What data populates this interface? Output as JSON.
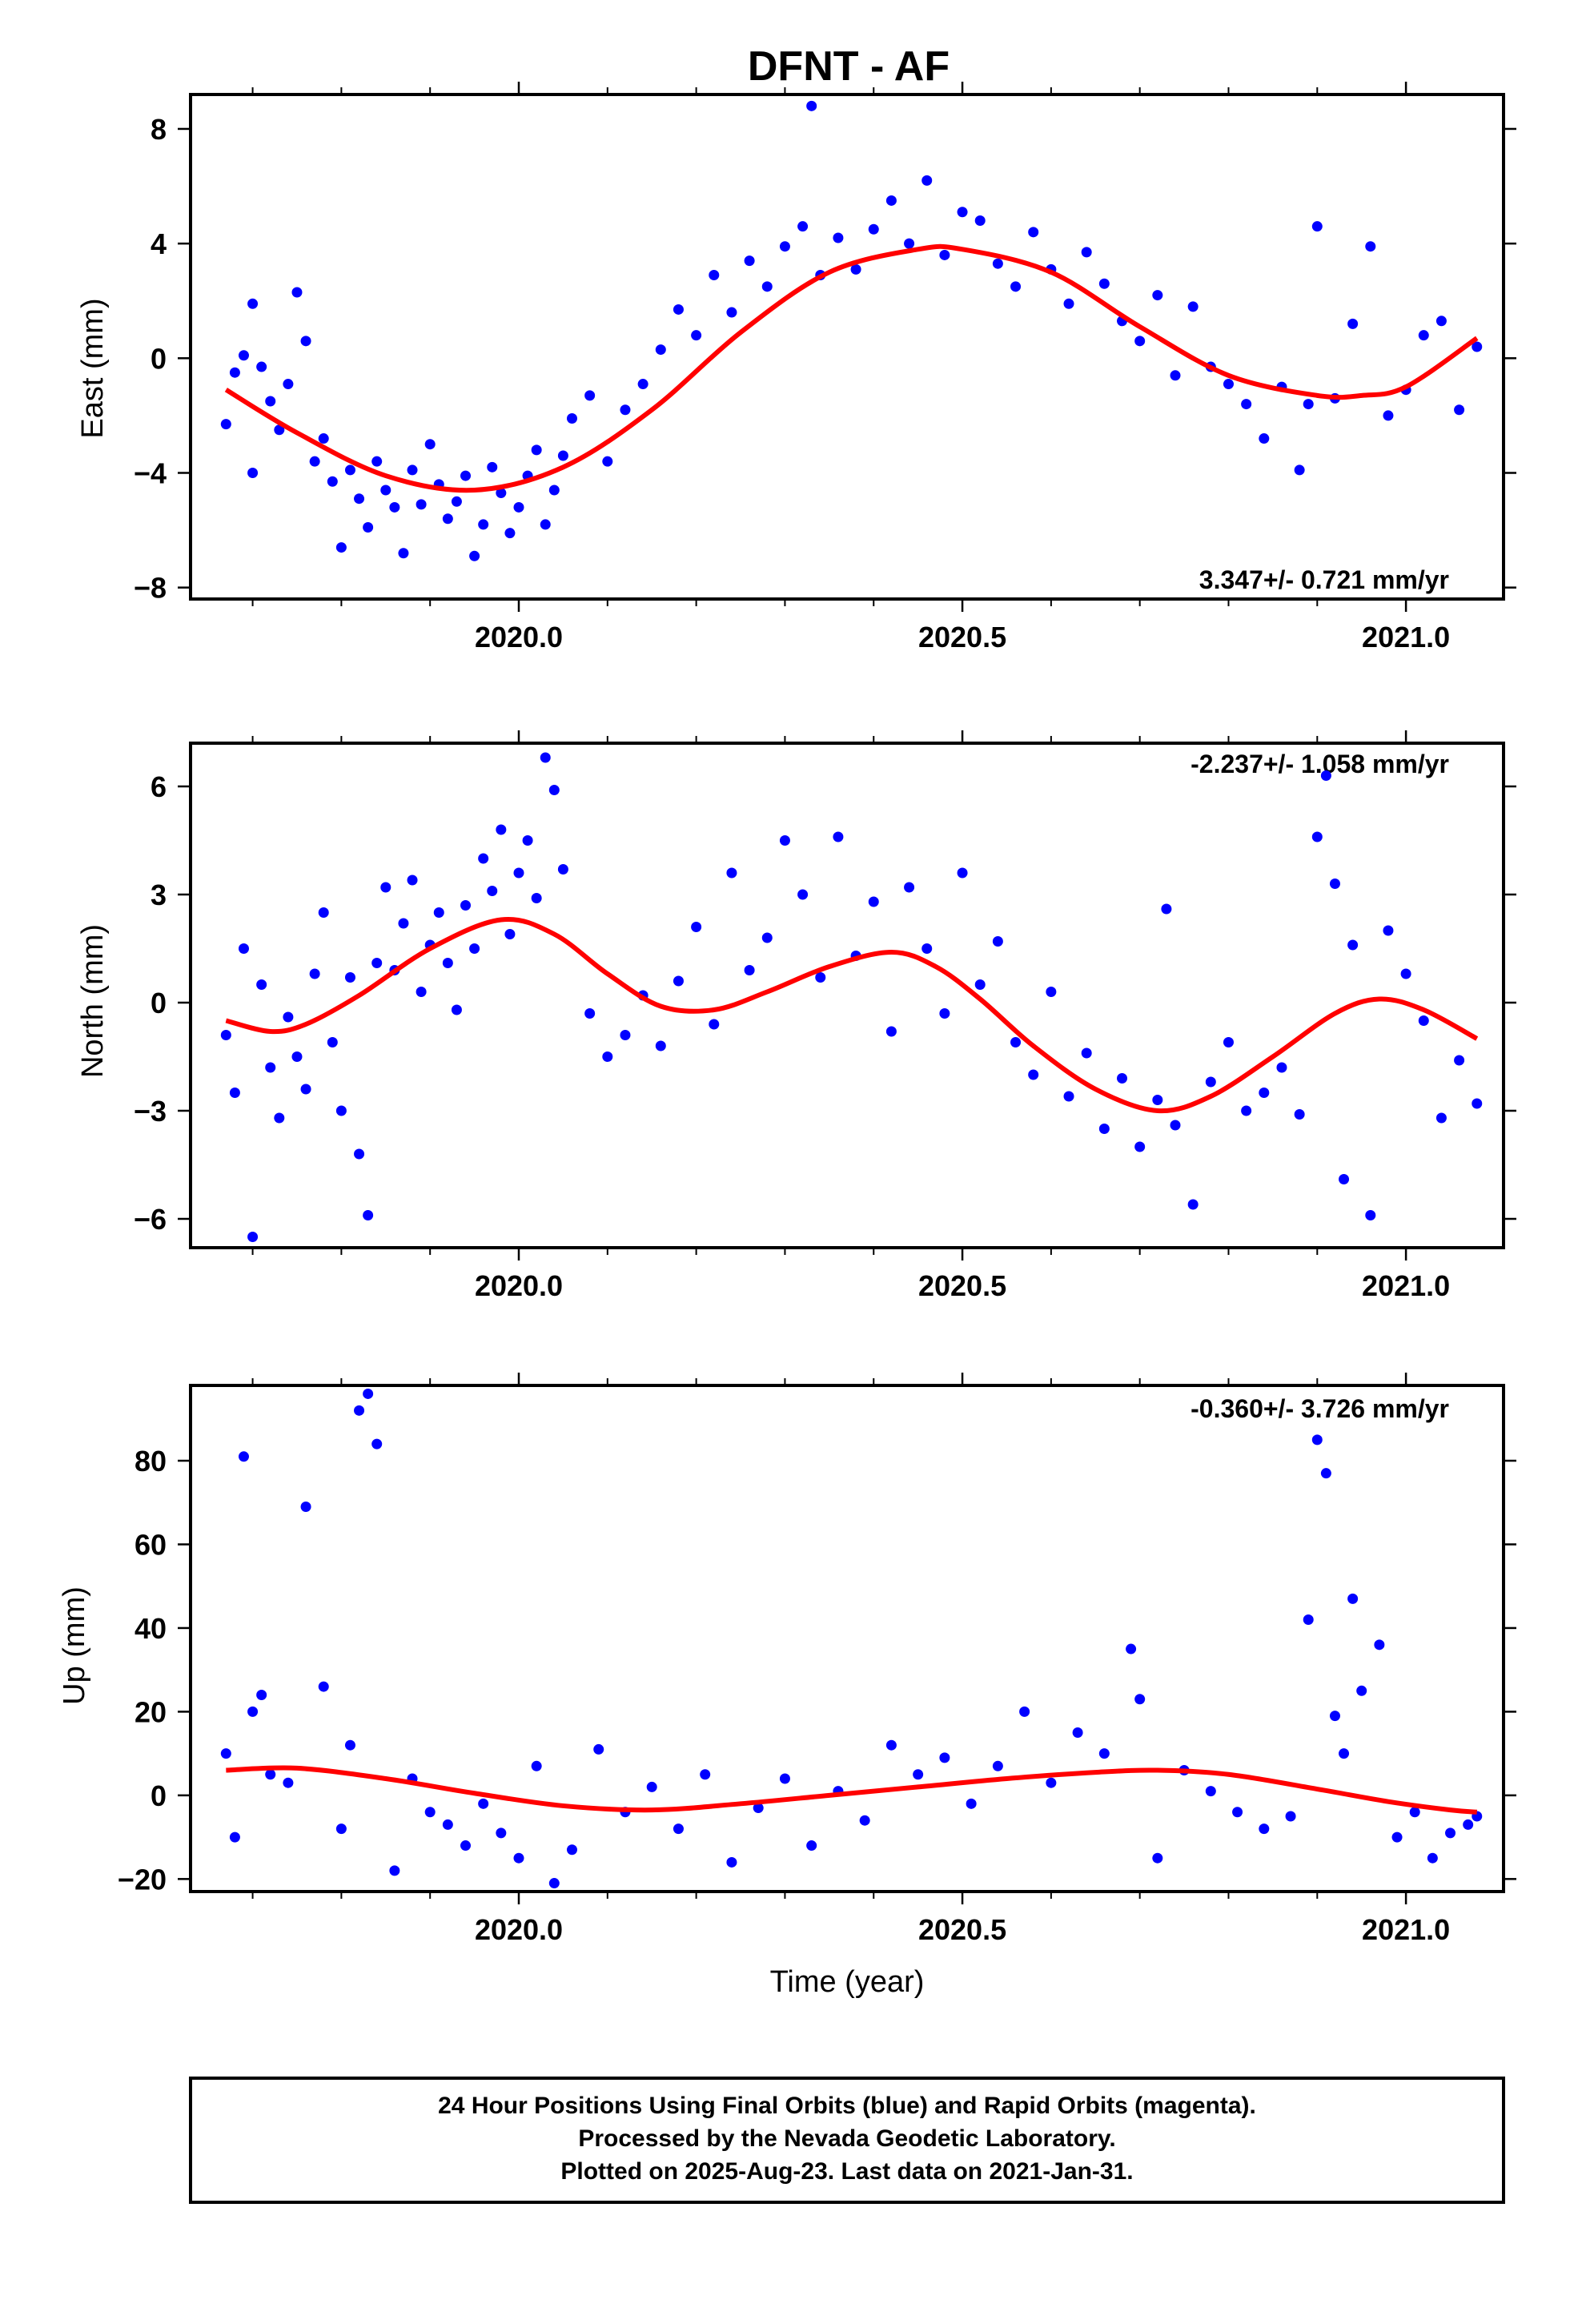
{
  "title": "DFNT - AF",
  "xlabel": "Time (year)",
  "colors": {
    "points": "#0000ff",
    "fit": "#ff0000",
    "frame": "#000000"
  },
  "footer": {
    "line1": "24 Hour Positions Using Final Orbits (blue) and Rapid Orbits (magenta).",
    "line2": "Processed by the Nevada Geodetic Laboratory.",
    "line3": "Plotted on 2025-Aug-23. Last data on 2021-Jan-31."
  },
  "chart_data": [
    {
      "type": "scatter",
      "ylabel": "East (mm)",
      "rate_label": "3.347+/- 0.721 mm/yr",
      "rate_position": "bottom-right",
      "xlim": [
        2019.63,
        2021.11
      ],
      "ylim": [
        -8.4,
        9.2
      ],
      "xticks": [
        2020.0,
        2020.5,
        2021.0
      ],
      "xticklabels": [
        "2020.0",
        "2020.5",
        "2021.0"
      ],
      "yticks": [
        -8,
        -4,
        0,
        4,
        8
      ],
      "yticklabels": [
        "−8",
        "−4",
        "0",
        "4",
        "8"
      ],
      "fit": {
        "name": "fit",
        "x": [
          2019.67,
          2019.75,
          2019.85,
          2019.95,
          2020.05,
          2020.15,
          2020.25,
          2020.35,
          2020.45,
          2020.5,
          2020.6,
          2020.7,
          2020.8,
          2020.9,
          2020.95,
          2021.0,
          2021.08
        ],
        "y": [
          -1.1,
          -2.6,
          -4.1,
          -4.6,
          -3.8,
          -1.8,
          0.9,
          3.0,
          3.8,
          3.8,
          3.0,
          1.1,
          -0.6,
          -1.3,
          -1.3,
          -1.0,
          0.7
        ]
      },
      "points": {
        "name": "positions",
        "x": [
          2019.67,
          2019.68,
          2019.69,
          2019.7,
          2019.7,
          2019.71,
          2019.72,
          2019.73,
          2019.74,
          2019.75,
          2019.76,
          2019.77,
          2019.78,
          2019.79,
          2019.8,
          2019.81,
          2019.82,
          2019.83,
          2019.84,
          2019.85,
          2019.86,
          2019.87,
          2019.88,
          2019.89,
          2019.9,
          2019.91,
          2019.92,
          2019.93,
          2019.94,
          2019.95,
          2019.96,
          2019.97,
          2019.98,
          2019.99,
          2020.0,
          2020.01,
          2020.02,
          2020.03,
          2020.04,
          2020.05,
          2020.06,
          2020.08,
          2020.1,
          2020.12,
          2020.14,
          2020.16,
          2020.18,
          2020.2,
          2020.22,
          2020.24,
          2020.26,
          2020.28,
          2020.3,
          2020.32,
          2020.33,
          2020.34,
          2020.36,
          2020.38,
          2020.4,
          2020.42,
          2020.44,
          2020.46,
          2020.48,
          2020.5,
          2020.52,
          2020.54,
          2020.56,
          2020.58,
          2020.6,
          2020.62,
          2020.64,
          2020.66,
          2020.68,
          2020.7,
          2020.72,
          2020.74,
          2020.76,
          2020.78,
          2020.8,
          2020.82,
          2020.84,
          2020.86,
          2020.88,
          2020.89,
          2020.9,
          2020.92,
          2020.94,
          2020.96,
          2020.98,
          2021.0,
          2021.02,
          2021.04,
          2021.06,
          2021.08
        ],
        "y": [
          -2.3,
          -0.5,
          0.1,
          -4.0,
          1.9,
          -0.3,
          -1.5,
          -2.5,
          -0.9,
          2.3,
          0.6,
          -3.6,
          -2.8,
          -4.3,
          -6.6,
          -3.9,
          -4.9,
          -5.9,
          -3.6,
          -4.6,
          -5.2,
          -6.8,
          -3.9,
          -5.1,
          -3.0,
          -4.4,
          -5.6,
          -5.0,
          -4.1,
          -6.9,
          -5.8,
          -3.8,
          -4.7,
          -6.1,
          -5.2,
          -4.1,
          -3.2,
          -5.8,
          -4.6,
          -3.4,
          -2.1,
          -1.3,
          -3.6,
          -1.8,
          -0.9,
          0.3,
          1.7,
          0.8,
          2.9,
          1.6,
          3.4,
          2.5,
          3.9,
          4.6,
          8.8,
          2.9,
          4.2,
          3.1,
          4.5,
          5.5,
          4.0,
          6.2,
          3.6,
          5.1,
          4.8,
          3.3,
          2.5,
          4.4,
          3.1,
          1.9,
          3.7,
          2.6,
          1.3,
          0.6,
          2.2,
          -0.6,
          1.8,
          -0.3,
          -0.9,
          -1.6,
          -2.8,
          -1.0,
          -3.9,
          -1.6,
          4.6,
          -1.4,
          1.2,
          3.9,
          -2.0,
          -1.1,
          0.8,
          1.3,
          -1.8,
          0.4
        ]
      }
    },
    {
      "type": "scatter",
      "ylabel": "North (mm)",
      "rate_label": "-2.237+/- 1.058 mm/yr",
      "rate_position": "top-right",
      "xlim": [
        2019.63,
        2021.11
      ],
      "ylim": [
        -6.8,
        7.2
      ],
      "xticks": [
        2020.0,
        2020.5,
        2021.0
      ],
      "xticklabels": [
        "2020.0",
        "2020.5",
        "2021.0"
      ],
      "yticks": [
        -6,
        -3,
        0,
        3,
        6
      ],
      "yticklabels": [
        "−6",
        "−3",
        "0",
        "3",
        "6"
      ],
      "fit": {
        "name": "fit",
        "x": [
          2019.67,
          2019.72,
          2019.76,
          2019.82,
          2019.9,
          2019.98,
          2020.04,
          2020.1,
          2020.16,
          2020.22,
          2020.28,
          2020.35,
          2020.42,
          2020.47,
          2020.52,
          2020.58,
          2020.65,
          2020.72,
          2020.78,
          2020.85,
          2020.92,
          2020.97,
          2021.02,
          2021.08
        ],
        "y": [
          -0.5,
          -0.8,
          -0.6,
          0.2,
          1.5,
          2.3,
          1.9,
          0.8,
          -0.1,
          -0.2,
          0.3,
          1.0,
          1.4,
          1.0,
          0.1,
          -1.2,
          -2.4,
          -3.0,
          -2.6,
          -1.5,
          -0.3,
          0.1,
          -0.2,
          -1.0
        ]
      },
      "points": {
        "name": "positions",
        "x": [
          2019.67,
          2019.68,
          2019.69,
          2019.7,
          2019.71,
          2019.72,
          2019.73,
          2019.74,
          2019.75,
          2019.76,
          2019.77,
          2019.78,
          2019.79,
          2019.8,
          2019.81,
          2019.82,
          2019.83,
          2019.84,
          2019.85,
          2019.86,
          2019.87,
          2019.88,
          2019.89,
          2019.9,
          2019.91,
          2019.92,
          2019.93,
          2019.94,
          2019.95,
          2019.96,
          2019.97,
          2019.98,
          2019.99,
          2020.0,
          2020.01,
          2020.02,
          2020.03,
          2020.04,
          2020.05,
          2020.08,
          2020.1,
          2020.12,
          2020.14,
          2020.16,
          2020.18,
          2020.2,
          2020.22,
          2020.24,
          2020.26,
          2020.28,
          2020.3,
          2020.32,
          2020.34,
          2020.36,
          2020.38,
          2020.4,
          2020.42,
          2020.44,
          2020.46,
          2020.48,
          2020.5,
          2020.52,
          2020.54,
          2020.56,
          2020.58,
          2020.6,
          2020.62,
          2020.64,
          2020.66,
          2020.68,
          2020.7,
          2020.72,
          2020.73,
          2020.74,
          2020.76,
          2020.78,
          2020.8,
          2020.82,
          2020.84,
          2020.86,
          2020.88,
          2020.9,
          2020.91,
          2020.92,
          2020.93,
          2020.94,
          2020.96,
          2020.98,
          2021.0,
          2021.02,
          2021.04,
          2021.06,
          2021.08
        ],
        "y": [
          -0.9,
          -2.5,
          1.5,
          -6.5,
          0.5,
          -1.8,
          -3.2,
          -0.4,
          -1.5,
          -2.4,
          0.8,
          2.5,
          -1.1,
          -3.0,
          0.7,
          -4.2,
          -5.9,
          1.1,
          3.2,
          0.9,
          2.2,
          3.4,
          0.3,
          1.6,
          2.5,
          1.1,
          -0.2,
          2.7,
          1.5,
          4.0,
          3.1,
          4.8,
          1.9,
          3.6,
          4.5,
          2.9,
          6.8,
          5.9,
          3.7,
          -0.3,
          -1.5,
          -0.9,
          0.2,
          -1.2,
          0.6,
          2.1,
          -0.6,
          3.6,
          0.9,
          1.8,
          4.5,
          3.0,
          0.7,
          4.6,
          1.3,
          2.8,
          -0.8,
          3.2,
          1.5,
          -0.3,
          3.6,
          0.5,
          1.7,
          -1.1,
          -2.0,
          0.3,
          -2.6,
          -1.4,
          -3.5,
          -2.1,
          -4.0,
          -2.7,
          2.6,
          -3.4,
          -5.6,
          -2.2,
          -1.1,
          -3.0,
          -2.5,
          -1.8,
          -3.1,
          4.6,
          6.3,
          3.3,
          -4.9,
          1.6,
          -5.9,
          2.0,
          0.8,
          -0.5,
          -3.2,
          -1.6,
          -2.8
        ]
      }
    },
    {
      "type": "scatter",
      "ylabel": "Up (mm)",
      "rate_label": "-0.360+/- 3.726 mm/yr",
      "rate_position": "top-right",
      "xlim": [
        2019.63,
        2021.11
      ],
      "ylim": [
        -23,
        98
      ],
      "xticks": [
        2020.0,
        2020.5,
        2021.0
      ],
      "xticklabels": [
        "2020.0",
        "2020.5",
        "2021.0"
      ],
      "yticks": [
        -20,
        0,
        20,
        40,
        60,
        80
      ],
      "yticklabels": [
        "−20",
        "0",
        "20",
        "40",
        "60",
        "80"
      ],
      "fit": {
        "name": "fit",
        "x": [
          2019.67,
          2019.75,
          2019.85,
          2019.95,
          2020.05,
          2020.15,
          2020.25,
          2020.35,
          2020.45,
          2020.55,
          2020.65,
          2020.72,
          2020.8,
          2020.9,
          2020.98,
          2021.05,
          2021.08
        ],
        "y": [
          6.0,
          6.5,
          4.0,
          0.5,
          -2.5,
          -3.5,
          -2.0,
          0.0,
          2.0,
          4.0,
          5.5,
          6.0,
          5.0,
          1.5,
          -1.5,
          -3.5,
          -4.0
        ]
      },
      "points": {
        "name": "positions",
        "x": [
          2019.67,
          2019.68,
          2019.69,
          2019.7,
          2019.71,
          2019.72,
          2019.74,
          2019.76,
          2019.78,
          2019.8,
          2019.81,
          2019.82,
          2019.83,
          2019.84,
          2019.86,
          2019.88,
          2019.9,
          2019.92,
          2019.94,
          2019.96,
          2019.98,
          2020.0,
          2020.02,
          2020.04,
          2020.06,
          2020.09,
          2020.12,
          2020.15,
          2020.18,
          2020.21,
          2020.24,
          2020.27,
          2020.3,
          2020.33,
          2020.36,
          2020.39,
          2020.42,
          2020.45,
          2020.48,
          2020.51,
          2020.54,
          2020.57,
          2020.6,
          2020.63,
          2020.66,
          2020.69,
          2020.7,
          2020.72,
          2020.75,
          2020.78,
          2020.81,
          2020.84,
          2020.87,
          2020.89,
          2020.9,
          2020.91,
          2020.92,
          2020.93,
          2020.94,
          2020.95,
          2020.97,
          2020.99,
          2021.01,
          2021.03,
          2021.05,
          2021.07,
          2021.08
        ],
        "y": [
          10.0,
          -10.0,
          81.0,
          20.0,
          24.0,
          5.0,
          3.0,
          69.0,
          26.0,
          -8.0,
          12.0,
          92.0,
          96.0,
          84.0,
          -18.0,
          4.0,
          -4.0,
          -7.0,
          -12.0,
          -2.0,
          -9.0,
          -15.0,
          7.0,
          -21.0,
          -13.0,
          11.0,
          -4.0,
          2.0,
          -8.0,
          5.0,
          -16.0,
          -3.0,
          4.0,
          -12.0,
          1.0,
          -6.0,
          12.0,
          5.0,
          9.0,
          -2.0,
          7.0,
          20.0,
          3.0,
          15.0,
          10.0,
          35.0,
          23.0,
          -15.0,
          6.0,
          1.0,
          -4.0,
          -8.0,
          -5.0,
          42.0,
          85.0,
          77.0,
          19.0,
          10.0,
          47.0,
          25.0,
          36.0,
          -10.0,
          -4.0,
          -15.0,
          -9.0,
          -7.0,
          -5.0
        ]
      }
    }
  ]
}
